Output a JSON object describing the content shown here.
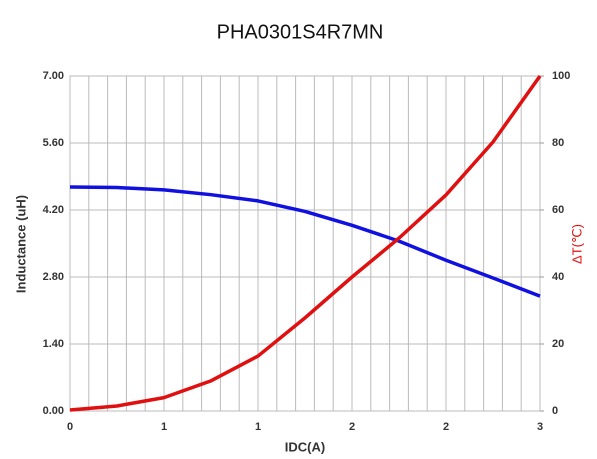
{
  "chart_data": {
    "type": "line",
    "title": "PHA0301S4R7MN",
    "xlabel": "IDC(A)",
    "ylabel": "Inductance (uH)",
    "y2label": "ΔT(℃)",
    "x": [
      0,
      0.3,
      0.6,
      0.9,
      1.2,
      1.5,
      1.8,
      2.1,
      2.4,
      2.7,
      3.0
    ],
    "series": [
      {
        "name": "Inductance",
        "color": "#1010e0",
        "values": [
          4.68,
          4.67,
          4.62,
          4.52,
          4.39,
          4.17,
          3.88,
          3.55,
          3.15,
          2.78,
          2.4
        ]
      },
      {
        "name": "ΔT",
        "color": "#e01010",
        "axis": "y2",
        "values": [
          0.3,
          1.5,
          4,
          9,
          16.4,
          27.8,
          40,
          51.6,
          64.5,
          80.3,
          100
        ]
      }
    ],
    "xlim": [
      0,
      3
    ],
    "xticks": [
      0,
      {
        "value": 0.6,
        "label": "1"
      },
      {
        "value": 1.2,
        "label": "1"
      },
      {
        "value": 1.8,
        "label": "2"
      },
      {
        "value": 2.4,
        "label": "2"
      },
      3
    ],
    "xminorticks": [
      0.12,
      0.24,
      0.36,
      0.48,
      0.72,
      0.84,
      0.96,
      1.08,
      1.32,
      1.44,
      1.56,
      1.68,
      1.92,
      2.04,
      2.16,
      2.28,
      2.52,
      2.64,
      2.76,
      2.88
    ],
    "ylim": [
      0,
      7
    ],
    "yticks": [
      {
        "value": 0,
        "label": "0.00"
      },
      {
        "value": 1.4,
        "label": "1.40"
      },
      {
        "value": 2.8,
        "label": "2.80"
      },
      {
        "value": 4.2,
        "label": "4.20"
      },
      {
        "value": 5.6,
        "label": "5.60"
      },
      {
        "value": 7,
        "label": "7.00"
      }
    ],
    "y2lim": [
      0,
      100
    ],
    "y2ticks": [
      0,
      20,
      40,
      60,
      80,
      100
    ],
    "grid": true
  }
}
